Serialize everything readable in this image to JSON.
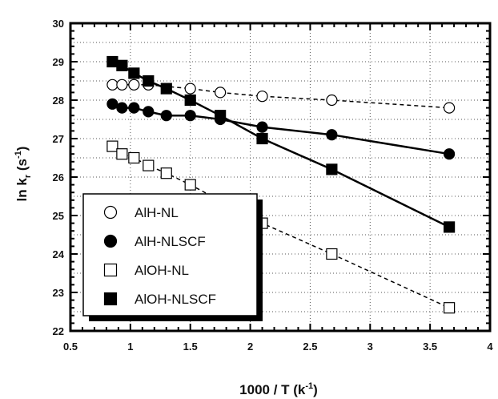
{
  "chart_data": {
    "type": "scatter",
    "xlabel": "1000 / T (k",
    "xlabel_sup": "-1",
    "xlabel_end": ")",
    "ylabel": "ln k",
    "ylabel_sub": "r",
    "ylabel_unit": "(s",
    "ylabel_sup": "-1",
    "ylabel_end": ")",
    "xlim": [
      0.5,
      4
    ],
    "ylim": [
      22,
      30
    ],
    "xticks": [
      0.5,
      1,
      1.5,
      2,
      2.5,
      3,
      3.5,
      4
    ],
    "xtick_labels": [
      "0.5",
      "1",
      "1.5",
      "2",
      "2.5",
      "3",
      "3.5",
      "4"
    ],
    "yticks": [
      22,
      23,
      24,
      25,
      26,
      27,
      28,
      29,
      30
    ],
    "ytick_labels": [
      "22",
      "23",
      "24",
      "25",
      "26",
      "27",
      "28",
      "29",
      "30"
    ],
    "grid": true,
    "legend_position": "bottom-left",
    "series": [
      {
        "name": "AlH-NL",
        "marker": "open-circle",
        "line": "dashed",
        "x": [
          0.85,
          0.93,
          1.03,
          1.15,
          1.5,
          1.75,
          2.1,
          2.68,
          3.66
        ],
        "y": [
          28.4,
          28.4,
          28.4,
          28.4,
          28.3,
          28.2,
          28.1,
          28.0,
          27.8
        ]
      },
      {
        "name": "AlH-NLSCF",
        "marker": "filled-circle",
        "line": "solid",
        "x": [
          0.85,
          0.93,
          1.03,
          1.15,
          1.3,
          1.5,
          1.75,
          2.1,
          2.68,
          3.66
        ],
        "y": [
          27.9,
          27.8,
          27.8,
          27.7,
          27.6,
          27.6,
          27.5,
          27.3,
          27.1,
          26.6
        ]
      },
      {
        "name": "AlOH-NL",
        "marker": "open-square",
        "line": "dashed",
        "x": [
          0.85,
          0.93,
          1.03,
          1.15,
          1.3,
          1.5,
          2.1,
          2.68,
          3.66
        ],
        "y": [
          26.8,
          26.6,
          26.5,
          26.3,
          26.1,
          25.8,
          24.8,
          24.0,
          22.6
        ]
      },
      {
        "name": "AlOH-NLSCF",
        "marker": "filled-square",
        "line": "solid",
        "x": [
          0.85,
          0.93,
          1.03,
          1.15,
          1.3,
          1.5,
          1.75,
          2.1,
          2.68,
          3.66
        ],
        "y": [
          29.0,
          28.9,
          28.7,
          28.5,
          28.3,
          28.0,
          27.6,
          27.0,
          26.2,
          24.7
        ]
      }
    ]
  }
}
